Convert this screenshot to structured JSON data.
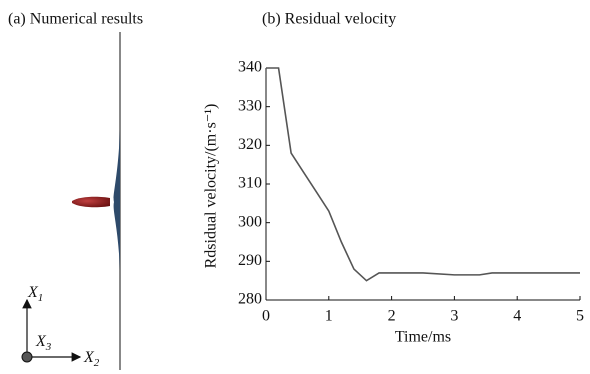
{
  "panel_a": {
    "title": "(a) Numerical results",
    "axes": [
      {
        "letter": "X",
        "index": "1"
      },
      {
        "letter": "X",
        "index": "2"
      },
      {
        "letter": "X",
        "index": "3"
      }
    ]
  },
  "chart_data": {
    "type": "line",
    "title": "(b) Residual velocity",
    "x_label": "Time/ms",
    "y_label": "Rdsidual velocity/(m·s⁻¹)",
    "x": [
      0,
      0.2,
      0.4,
      0.6,
      0.8,
      1.0,
      1.2,
      1.4,
      1.6,
      1.8,
      2.0,
      2.5,
      3.0,
      3.4,
      3.6,
      4.0,
      5.0
    ],
    "series": [
      {
        "color": "#555555",
        "values": [
          340,
          340,
          318,
          313,
          308,
          303,
          295,
          288,
          285,
          287,
          287,
          287,
          286.5,
          286.5,
          287,
          287,
          287
        ]
      }
    ],
    "xlim": [
      0,
      5
    ],
    "xticks": [
      0,
      1,
      2,
      3,
      4,
      5
    ],
    "ylim": [
      280,
      340
    ],
    "yticks": [
      280,
      290,
      300,
      310,
      320,
      330,
      340
    ]
  }
}
